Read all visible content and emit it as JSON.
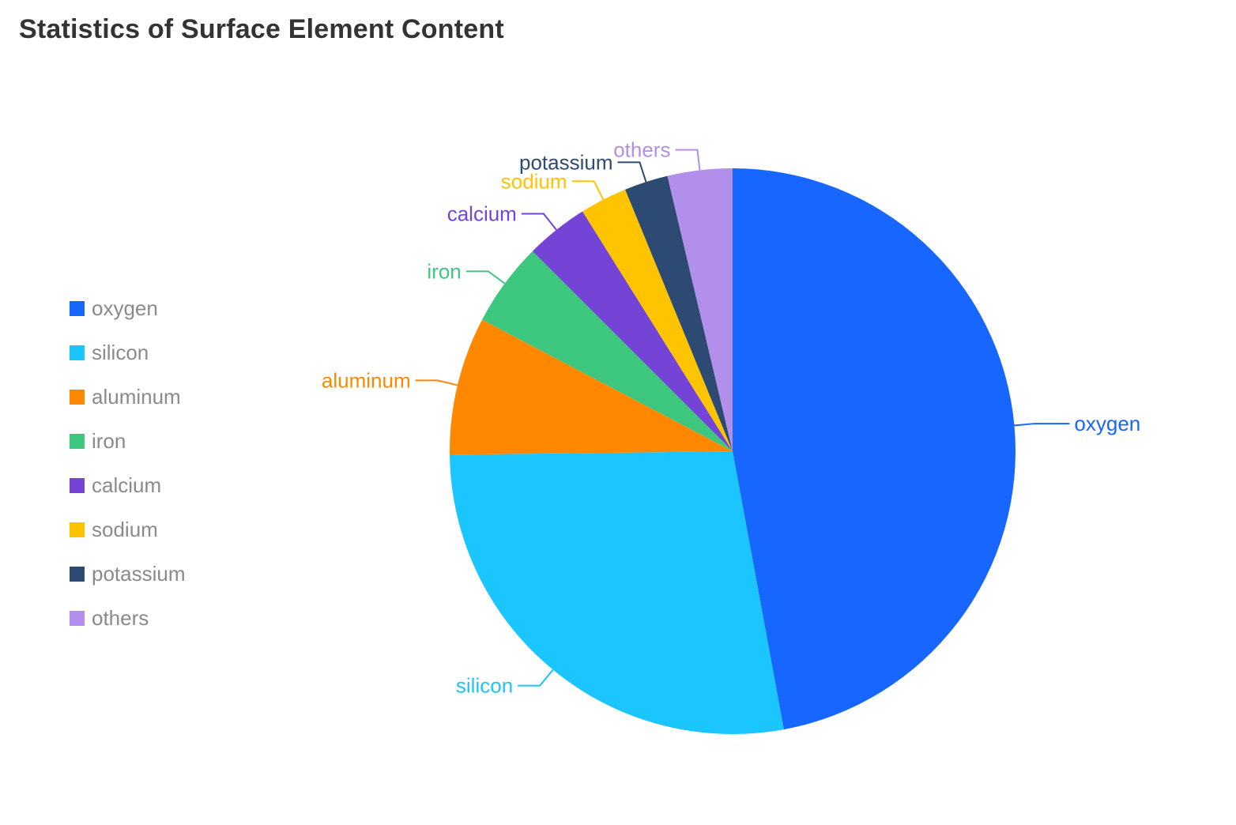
{
  "title": "Statistics of Surface Element Content",
  "chart_data": {
    "type": "pie",
    "title": "Statistics of Surface Element Content",
    "legend_position": "left",
    "slices": [
      {
        "name": "oxygen",
        "value": 47.1,
        "color": "#1766ff"
      },
      {
        "name": "silicon",
        "value": 27.7,
        "color": "#1bc6ff"
      },
      {
        "name": "aluminum",
        "value": 7.9,
        "color": "#ff8800"
      },
      {
        "name": "iron",
        "value": 4.8,
        "color": "#3dc77e"
      },
      {
        "name": "calcium",
        "value": 3.6,
        "color": "#7444d6"
      },
      {
        "name": "sodium",
        "value": 2.7,
        "color": "#ffc400"
      },
      {
        "name": "potassium",
        "value": 2.5,
        "color": "#2d4b72"
      },
      {
        "name": "others",
        "value": 3.7,
        "color": "#b38fec"
      }
    ]
  }
}
